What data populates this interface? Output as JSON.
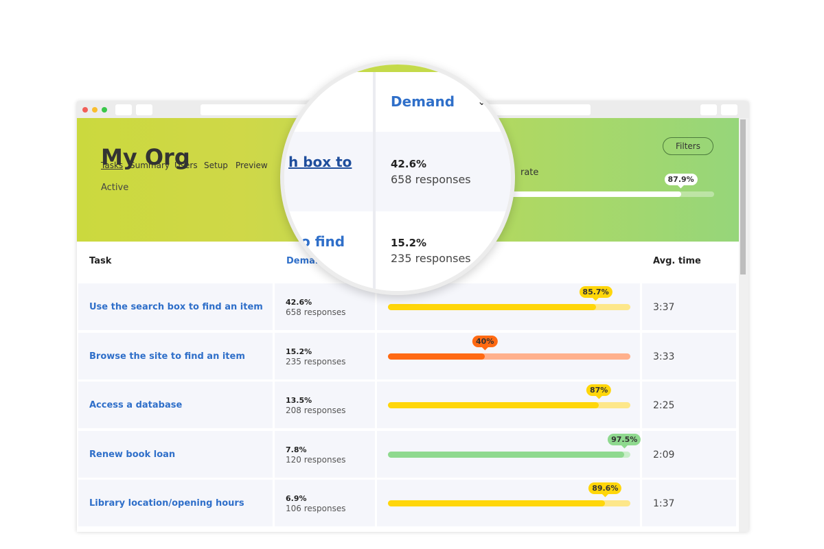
{
  "nav": [
    "Tasks",
    "Summary",
    "Users",
    "Setup",
    "Preview"
  ],
  "org": {
    "name": "My Org",
    "status": "Active"
  },
  "filters_button": "Filters",
  "summary": {
    "label": "rate",
    "value": 87.9,
    "value_label": "87.9%",
    "xlim": [
      0,
      100
    ]
  },
  "table": {
    "headers": [
      "Task",
      "Demand",
      "Avg. time"
    ],
    "xlim": [
      0,
      100
    ],
    "rows": [
      {
        "task": "Use the search box to find an item",
        "demand": "42.6%",
        "responses": "658 responses",
        "success": 85.7,
        "success_label": "85.7%",
        "color": "#ffd60a",
        "track_color": "#fde78a",
        "avg_time": "3:37"
      },
      {
        "task": "Browse the site to find an item",
        "demand": "15.2%",
        "responses": "235 responses",
        "success": 40,
        "success_label": "40%",
        "color": "#ff6a13",
        "track_color": "#ffb08c",
        "avg_time": "3:33"
      },
      {
        "task": "Access a database",
        "demand": "13.5%",
        "responses": "208 responses",
        "success": 87,
        "success_label": "87%",
        "color": "#ffd60a",
        "track_color": "#fde78a",
        "avg_time": "2:25"
      },
      {
        "task": "Renew book loan",
        "demand": "7.8%",
        "responses": "120 responses",
        "success": 97.5,
        "success_label": "97.5%",
        "color": "#8fd98f",
        "track_color": "#c9eec9",
        "avg_time": "2:09"
      },
      {
        "task": "Library location/opening hours",
        "demand": "6.9%",
        "responses": "106 responses",
        "success": 89.6,
        "success_label": "89.6%",
        "color": "#ffd60a",
        "track_color": "#fde78a",
        "avg_time": "1:37"
      }
    ]
  },
  "magnifier": {
    "header": "Demand",
    "rows": [
      {
        "task_fragment": "h box to",
        "demand": "42.6%",
        "responses": "658 responses"
      },
      {
        "task_fragment": "o find",
        "demand": "15.2%",
        "responses": "235 responses"
      }
    ]
  }
}
